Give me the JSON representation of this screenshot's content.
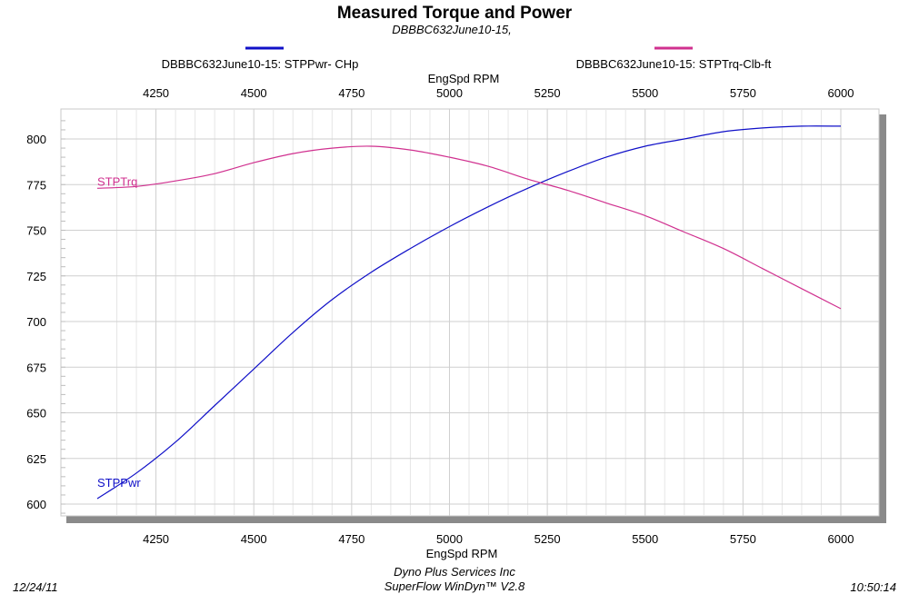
{
  "chart_data": {
    "type": "line",
    "title": "Measured Torque and Power",
    "subtitle": "DBBBC632June10-15,",
    "xlabel": "EngSpd  RPM",
    "xlim": [
      4100,
      6000
    ],
    "ylim": [
      595,
      810
    ],
    "x_ticks": [
      4250,
      4500,
      4750,
      5000,
      5250,
      5500,
      5750,
      6000
    ],
    "y_ticks": [
      600,
      625,
      650,
      675,
      700,
      725,
      750,
      775,
      800
    ],
    "grid": true,
    "legend_placement": "top",
    "series": [
      {
        "name": "DBBBC632June10-15: STPPwr- CHp",
        "label": "STPPwr",
        "color": "#1010c8",
        "x": [
          4100,
          4200,
          4300,
          4400,
          4500,
          4600,
          4700,
          4800,
          4900,
          5000,
          5100,
          5200,
          5300,
          5400,
          5500,
          5600,
          5700,
          5800,
          5900,
          6000
        ],
        "y": [
          603,
          617,
          634,
          654,
          674,
          694,
          712,
          727,
          740,
          752,
          763,
          773,
          782,
          790,
          796,
          800,
          804,
          806,
          807,
          807
        ]
      },
      {
        "name": "DBBBC632June10-15: STPTrq-Clb-ft",
        "label": "STPTrq",
        "color": "#d0308f",
        "x": [
          4100,
          4200,
          4300,
          4400,
          4500,
          4600,
          4700,
          4800,
          4900,
          5000,
          5100,
          5200,
          5300,
          5400,
          5500,
          5600,
          5700,
          5800,
          5900,
          6000
        ],
        "y": [
          773,
          774,
          777,
          781,
          787,
          792,
          795,
          796,
          794,
          790,
          785,
          778,
          772,
          765,
          758,
          749,
          740,
          729,
          718,
          707
        ]
      }
    ]
  },
  "footer": {
    "date": "12/24/11",
    "time": "10:50:14",
    "company": "Dyno Plus Services Inc",
    "software": "SuperFlow WinDyn™ V2.8"
  }
}
